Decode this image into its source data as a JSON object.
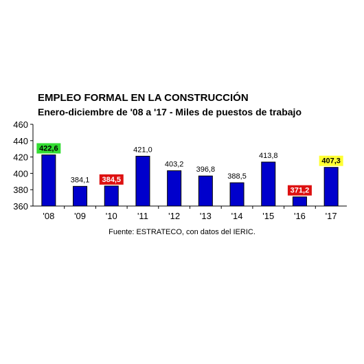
{
  "chart_data": {
    "type": "bar",
    "title": "EMPLEO FORMAL EN LA CONSTRUCCIÓN",
    "subtitle": "Enero-diciembre  de '08 a '17 - Miles de puestos de trabajo",
    "source": "Fuente: ESTRATECO, con datos del IERIC.",
    "categories": [
      "'08",
      "'09",
      "'10",
      "'11",
      "'12",
      "'13",
      "'14",
      "'15",
      "'16",
      "'17"
    ],
    "values": [
      422.6,
      384.1,
      384.5,
      421.0,
      403.2,
      396.8,
      388.5,
      413.8,
      371.2,
      407.3
    ],
    "data_labels": [
      "422,6",
      "384,1",
      "384,5",
      "421,0",
      "403,2",
      "396,8",
      "388,5",
      "413,8",
      "371,2",
      "407,3"
    ],
    "highlights": [
      "green",
      "none",
      "red",
      "none",
      "none",
      "none",
      "none",
      "none",
      "red",
      "yellow"
    ],
    "ylim": [
      360,
      460
    ],
    "yticks": [
      360,
      380,
      400,
      420,
      440,
      460
    ],
    "xlabel": "",
    "ylabel": "",
    "grid": false,
    "legend": "none",
    "colors": {
      "bar": "#0000cc",
      "bar_edge": "#000000",
      "green": "#33dd33",
      "red": "#dd1111",
      "yellow": "#ffff33"
    }
  }
}
